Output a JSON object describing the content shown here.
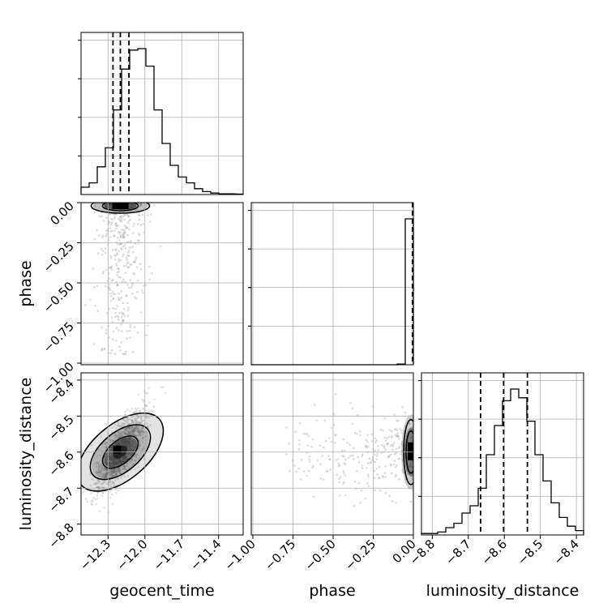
{
  "chart_data": {
    "type": "corner",
    "parameters": [
      "geocent_time",
      "phase",
      "luminosity_distance"
    ],
    "axis_labels": {
      "geocent_time": "geocent_time",
      "phase": "phase",
      "luminosity_distance": "luminosity_distance"
    },
    "ranges": {
      "geocent_time": [
        -12.52,
        -11.2
      ],
      "phase": [
        -1.01,
        0.0
      ],
      "luminosity_distance": [
        -8.83,
        -8.38
      ]
    },
    "ticks": {
      "geocent_time": [
        -12.3,
        -12.0,
        -11.7,
        -11.4
      ],
      "phase": [
        -1.0,
        -0.75,
        -0.5,
        -0.25,
        0.0
      ],
      "luminosity_distance": [
        -8.8,
        -8.7,
        -8.6,
        -8.5,
        -8.4
      ]
    },
    "tick_labels": {
      "geocent_time": [
        "−12.3",
        "−12.0",
        "−11.7",
        "−11.4"
      ],
      "phase": [
        "−1.00",
        "−0.75",
        "−0.50",
        "−0.25",
        "0.00"
      ],
      "luminosity_distance": [
        "−8.8",
        "−8.7",
        "−8.6",
        "−8.5",
        "−8.4"
      ]
    },
    "quantiles": {
      "geocent_time": [
        -12.26,
        -12.2,
        -12.13
      ],
      "phase": [
        -0.005,
        -0.003,
        -0.001
      ],
      "luminosity_distance": [
        -8.666,
        -8.602,
        -8.536
      ]
    },
    "histograms": {
      "geocent_time": {
        "bin_start": -12.52,
        "bin_width": 0.066,
        "counts": [
          0.05,
          0.08,
          0.19,
          0.32,
          0.58,
          0.86,
          0.99,
          1.0,
          0.88,
          0.58,
          0.35,
          0.2,
          0.12,
          0.08,
          0.04,
          0.02,
          0.01,
          0.005,
          0.005,
          0.003
        ]
      },
      "phase": {
        "bin_start": -1.01,
        "bin_width": 0.0505,
        "counts": [
          0.0,
          0.0,
          0.0,
          0.0,
          0.0,
          0.0,
          0.0,
          0.0,
          0.0,
          0.0,
          0.0,
          0.0,
          0.0,
          0.0,
          0.0,
          0.0,
          0.0,
          0.0,
          0.005,
          1.0
        ]
      },
      "luminosity_distance": {
        "bin_start": -8.83,
        "bin_width": 0.0225,
        "counts": [
          0.01,
          0.01,
          0.02,
          0.05,
          0.08,
          0.15,
          0.2,
          0.32,
          0.55,
          0.75,
          0.92,
          1.0,
          0.94,
          0.78,
          0.55,
          0.37,
          0.22,
          0.12,
          0.06,
          0.03
        ]
      }
    },
    "scatter_2d": [
      {
        "x": "geocent_time",
        "y": "phase",
        "center": [
          -12.2,
          -0.01
        ],
        "spread_note": "points scattered between phase -0.95 and 0.0"
      },
      {
        "x": "geocent_time",
        "y": "luminosity_distance",
        "center": [
          -12.2,
          -8.6
        ],
        "correlation": "positive"
      },
      {
        "x": "phase",
        "y": "luminosity_distance",
        "center": [
          -0.005,
          -8.6
        ]
      }
    ],
    "grid": true,
    "legend": "none"
  }
}
